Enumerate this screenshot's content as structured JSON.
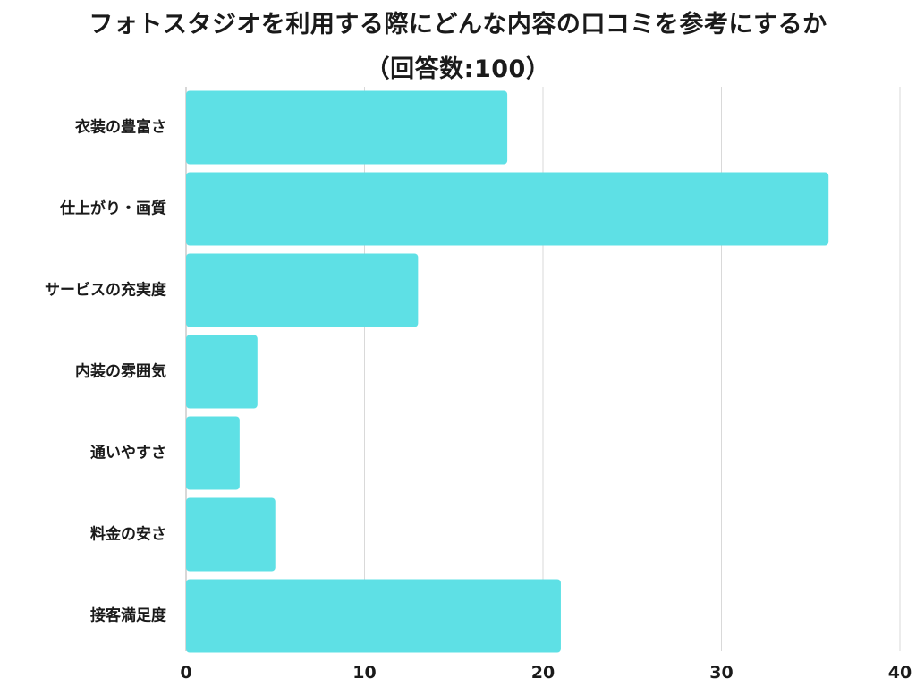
{
  "title": {
    "line1": "フォトスタジオを利用する際にどんな内容の口コミを参考にするか",
    "line2": "（回答数:100）"
  },
  "chart_data": {
    "type": "bar",
    "orientation": "horizontal",
    "title": "フォトスタジオを利用する際にどんな内容の口コミを参考にするか（回答数:100）",
    "categories": [
      "衣装の豊富さ",
      "仕上がり・画質",
      "サービスの充実度",
      "内装の雰囲気",
      "通いやすさ",
      "料金の安さ",
      "接客満足度"
    ],
    "values": [
      18,
      36,
      13,
      4,
      3,
      5,
      21
    ],
    "xlim": [
      0,
      40
    ],
    "ticks": [
      "0",
      "10",
      "20",
      "30",
      "40"
    ],
    "grid": true,
    "legend": "none",
    "bar_color": "#5ee0e5",
    "grid_color": "#d9d9d9",
    "axis_color": "#cccccc"
  }
}
